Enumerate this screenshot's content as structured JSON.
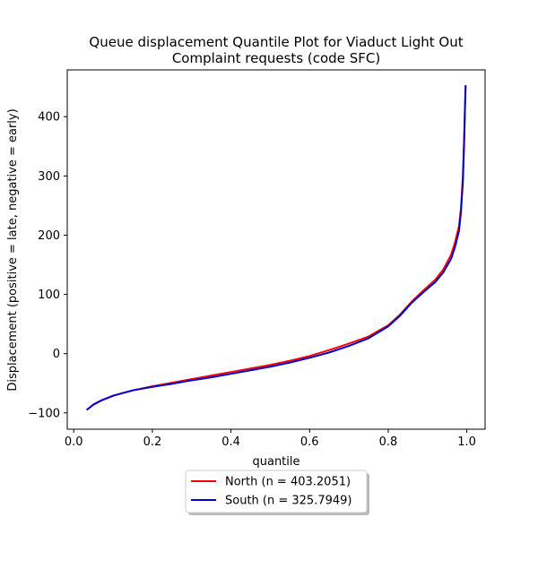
{
  "chart_data": {
    "type": "line",
    "title_lines": [
      "Queue displacement Quantile Plot for Viaduct Light Out",
      "Complaint  requests (code SFC)"
    ],
    "xlabel": "quantile",
    "ylabel": "Displacement (positive = late, negative = early)",
    "xlim": [
      -0.0165,
      1.0465
    ],
    "ylim": [
      -127.5,
      479
    ],
    "xticks": [
      0.0,
      0.2,
      0.4,
      0.6,
      0.8,
      1.0
    ],
    "xtick_labels": [
      "0.0",
      "0.2",
      "0.4",
      "0.6",
      "0.8",
      "1.0"
    ],
    "yticks": [
      -100,
      0,
      100,
      200,
      300,
      400
    ],
    "ytick_labels": [
      "−100",
      "0",
      "100",
      "200",
      "300",
      "400"
    ],
    "grid": false,
    "legend_placement": "below plot, centered",
    "series": [
      {
        "name": "North (n = 403.2051)",
        "color": "#ff0000",
        "x": [
          0.033,
          0.05,
          0.07,
          0.1,
          0.15,
          0.2,
          0.25,
          0.3,
          0.35,
          0.4,
          0.45,
          0.5,
          0.55,
          0.6,
          0.65,
          0.7,
          0.75,
          0.8,
          0.83,
          0.86,
          0.89,
          0.92,
          0.94,
          0.96,
          0.97,
          0.98,
          0.985,
          0.99,
          0.993,
          0.995,
          0.997
        ],
        "y": [
          -95,
          -86,
          -79,
          -71,
          -62,
          -55,
          -49,
          -43,
          -37,
          -31,
          -25,
          -19,
          -12,
          -4,
          6,
          17,
          29,
          48,
          66,
          88,
          107,
          125,
          142,
          167,
          188,
          215,
          245,
          300,
          360,
          410,
          453
        ]
      },
      {
        "name": "South (n = 325.7949)",
        "color": "#0000cc",
        "x": [
          0.033,
          0.05,
          0.07,
          0.1,
          0.15,
          0.2,
          0.25,
          0.3,
          0.35,
          0.4,
          0.45,
          0.5,
          0.55,
          0.6,
          0.65,
          0.7,
          0.75,
          0.8,
          0.83,
          0.86,
          0.89,
          0.92,
          0.94,
          0.96,
          0.97,
          0.98,
          0.985,
          0.99,
          0.993,
          0.995,
          0.997
        ],
        "y": [
          -95,
          -86,
          -79,
          -71,
          -62,
          -56,
          -51,
          -45,
          -40,
          -34,
          -28,
          -22,
          -15,
          -7,
          2,
          13,
          26,
          46,
          64,
          86,
          104,
          121,
          137,
          160,
          180,
          207,
          238,
          290,
          352,
          405,
          453
        ]
      }
    ]
  }
}
